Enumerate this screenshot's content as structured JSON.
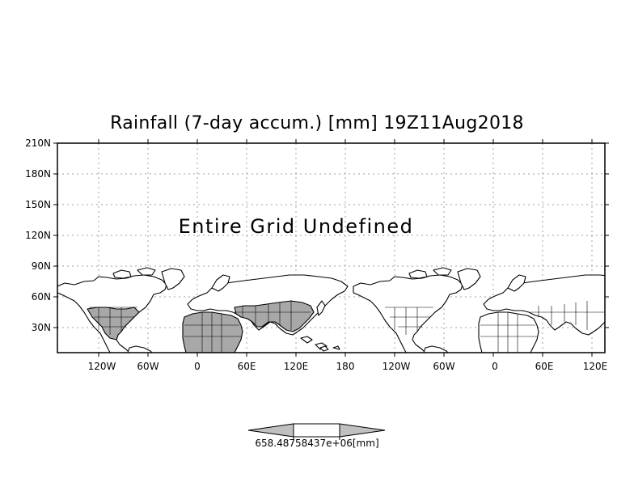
{
  "title": "Rainfall (7-day accum.) [mm] 19Z11Aug2018",
  "message": "Entire Grid Undefined",
  "map": {
    "projection": "latlon",
    "lon_range": [
      -170,
      130
    ],
    "lat_range": [
      0,
      210
    ],
    "grid": true,
    "lat_ticks": [
      "210N",
      "180N",
      "150N",
      "120N",
      "90N",
      "60N",
      "30N"
    ],
    "lon_ticks": [
      "120W",
      "60W",
      "0",
      "60E",
      "120E",
      "180",
      "120W",
      "60W",
      "0",
      "60E",
      "120E"
    ],
    "shaded_regions": [
      "North America (USA, Mexico)",
      "Africa",
      "Middle East",
      "South Asia",
      "China"
    ],
    "shade_color": "#a8a8a8"
  },
  "legend": {
    "label": "658.48758437e+06[mm]",
    "fill_color": "#c0c0c0"
  }
}
